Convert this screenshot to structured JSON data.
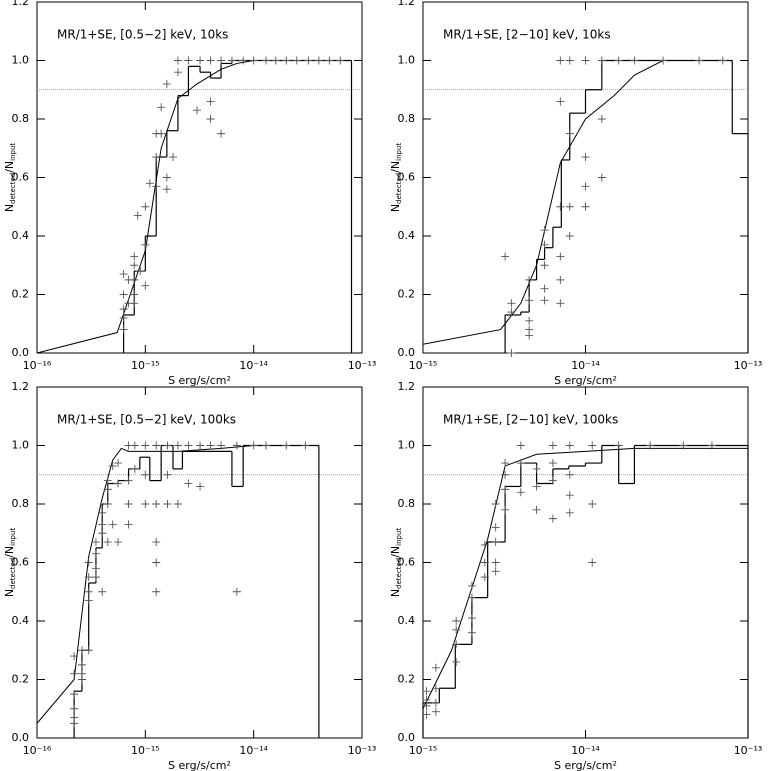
{
  "chart_data": [
    {
      "type": "line",
      "title": "MR/1+SE, [0.5−2] keV, 10ks",
      "xlabel": "S erg/s/cm²",
      "ylabel": [
        "N",
        "detected",
        "/N",
        "input"
      ],
      "xlog": true,
      "xlim": [
        1e-16,
        1e-13
      ],
      "xticks": [
        {
          "value": 1e-16,
          "label": "10⁻¹⁶"
        },
        {
          "value": 1e-15,
          "label": "10⁻¹⁵"
        },
        {
          "value": 1e-14,
          "label": "10⁻¹⁴"
        },
        {
          "value": 1e-13,
          "label": "10⁻¹³"
        }
      ],
      "ylim": [
        0,
        1.2
      ],
      "yticks": [
        {
          "value": 0,
          "label": "0.0"
        },
        0.2,
        0.4,
        0.6,
        0.8,
        {
          "value": 1,
          "label": "1.0"
        },
        1.2
      ],
      "reference_line": 0.9,
      "color": "#000000",
      "histogram": {
        "bins": [
          6.3e-16,
          7.9e-16,
          1e-15,
          1.26e-15,
          1.58e-15,
          2e-15,
          2.5e-15,
          3.2e-15,
          4e-15,
          5e-15,
          6.3e-15,
          1e-14,
          8e-14
        ],
        "values": [
          0.13,
          0.28,
          0.4,
          0.67,
          0.76,
          0.88,
          0.98,
          0.96,
          0.94,
          0.99,
          1.0,
          1.0
        ]
      },
      "curve": {
        "x": [
          1e-16,
          5.5e-16,
          1e-15,
          1.4e-15,
          2e-15,
          3e-15,
          5e-15,
          7e-15,
          1e-14,
          8e-14
        ],
        "values": [
          0,
          0.07,
          0.35,
          0.7,
          0.87,
          0.92,
          0.97,
          0.99,
          1.0,
          1.0
        ]
      },
      "points": {
        "x": [
          6.3e-16,
          6.3e-16,
          6.3e-16,
          6.3e-16,
          6.3e-16,
          7e-16,
          7e-16,
          7.9e-16,
          7.9e-16,
          7.9e-16,
          7.9e-16,
          7.9e-16,
          8.5e-16,
          9e-16,
          1e-15,
          1e-15,
          1e-15,
          1.1e-15,
          1.26e-15,
          1.26e-15,
          1.26e-15,
          1.4e-15,
          1.4e-15,
          1.58e-15,
          1.58e-15,
          1.58e-15,
          1.8e-15,
          2e-15,
          2e-15,
          2.5e-15,
          3e-15,
          3.2e-15,
          4e-15,
          4e-15,
          4e-15,
          5e-15,
          5e-15,
          6.3e-15,
          8e-15,
          1e-14,
          1.3e-14,
          1.6e-14,
          2e-14,
          2.5e-14,
          3.2e-14,
          4e-14,
          5e-14,
          6.3e-14
        ],
        "values": [
          0.27,
          0.2,
          0.15,
          0.12,
          0.08,
          0.25,
          0.17,
          0.33,
          0.3,
          0.25,
          0.2,
          0.17,
          0.47,
          0.28,
          0.5,
          0.37,
          0.23,
          0.58,
          0.75,
          0.67,
          0.57,
          0.84,
          0.75,
          0.92,
          0.6,
          0.56,
          0.67,
          0.96,
          1.0,
          1.0,
          0.83,
          1.0,
          0.86,
          0.8,
          1.0,
          0.75,
          1.0,
          1.0,
          1.0,
          1.0,
          1.0,
          1.0,
          1.0,
          1.0,
          1.0,
          1.0,
          1.0,
          1.0
        ]
      }
    },
    {
      "type": "line",
      "title": "MR/1+SE, [2−10] keV, 10ks",
      "xlabel": "S erg/s/cm²",
      "ylabel": [
        "N",
        "detected",
        "/N",
        "input"
      ],
      "xlog": true,
      "xlim": [
        1e-15,
        1e-13
      ],
      "xticks": [
        {
          "value": 1e-15,
          "label": "10⁻¹⁵"
        },
        {
          "value": 1e-14,
          "label": "10⁻¹⁴"
        },
        {
          "value": 1e-13,
          "label": "10⁻¹³"
        }
      ],
      "ylim": [
        0,
        1.2
      ],
      "yticks": [
        {
          "value": 0,
          "label": "0.0"
        },
        0.2,
        0.4,
        0.6,
        0.8,
        {
          "value": 1,
          "label": "1.0"
        },
        1.2
      ],
      "reference_line": 0.9,
      "color": "#000000",
      "histogram": {
        "bins": [
          3.2e-15,
          4e-15,
          4.5e-15,
          5e-15,
          5.6e-15,
          6.3e-15,
          7.1e-15,
          8e-15,
          1e-14,
          1.26e-14,
          1.6e-14,
          8e-14,
          1e-13
        ],
        "values": [
          0.13,
          0.14,
          0.25,
          0.32,
          0.36,
          0.43,
          0.66,
          0.82,
          0.9,
          1.0,
          1.0,
          0.75
        ]
      },
      "curve": {
        "x": [
          1e-15,
          3e-15,
          4e-15,
          5e-15,
          7e-15,
          1e-14,
          1.5e-14,
          2e-14,
          3e-14,
          8e-14
        ],
        "values": [
          0.03,
          0.08,
          0.17,
          0.3,
          0.65,
          0.8,
          0.88,
          0.95,
          1.0,
          1.0
        ]
      },
      "points": {
        "x": [
          3.2e-15,
          3.5e-15,
          3.5e-15,
          3.5e-15,
          4.5e-15,
          4.5e-15,
          4.5e-15,
          4.5e-15,
          4.5e-15,
          5.6e-15,
          5.6e-15,
          5.6e-15,
          5.6e-15,
          5.6e-15,
          7e-15,
          7e-15,
          7e-15,
          7e-15,
          7e-15,
          7e-15,
          8e-15,
          8e-15,
          8e-15,
          8e-15,
          1e-14,
          1e-14,
          1e-14,
          1e-14,
          1.26e-14,
          1.26e-14,
          1.26e-14,
          1.6e-14,
          2e-14,
          3e-14,
          5e-14,
          7e-14
        ],
        "values": [
          0.33,
          0.17,
          0.14,
          0,
          0.25,
          0.18,
          0.11,
          0.08,
          0.06,
          0.42,
          0.37,
          0.3,
          0.22,
          0.18,
          0.86,
          0.5,
          0.33,
          0.25,
          0.17,
          1.0,
          0.75,
          0.5,
          0.4,
          1.0,
          0.67,
          0.57,
          0.5,
          1.0,
          0.8,
          0.6,
          1.0,
          1.0,
          1.0,
          1.0,
          1.0,
          1.0
        ]
      }
    },
    {
      "type": "line",
      "title": "MR/1+SE, [0.5−2] keV, 100ks",
      "xlabel": "S erg/s/cm²",
      "ylabel": [
        "N",
        "detected",
        "/N",
        "input"
      ],
      "xlog": true,
      "xlim": [
        1e-16,
        1e-13
      ],
      "xticks": [
        {
          "value": 1e-16,
          "label": "10⁻¹⁶"
        },
        {
          "value": 1e-15,
          "label": "10⁻¹⁵"
        },
        {
          "value": 1e-14,
          "label": "10⁻¹⁴"
        },
        {
          "value": 1e-13,
          "label": "10⁻¹³"
        }
      ],
      "ylim": [
        0,
        1.2
      ],
      "yticks": [
        {
          "value": 0,
          "label": "0.0"
        },
        0.2,
        0.4,
        0.6,
        0.8,
        {
          "value": 1,
          "label": "1.0"
        },
        1.2
      ],
      "reference_line": 0.9,
      "color": "#000000",
      "histogram": {
        "bins": [
          2.2e-16,
          2.6e-16,
          3e-16,
          3.5e-16,
          4e-16,
          4.5e-16,
          5.6e-16,
          7e-16,
          8.9e-16,
          1.1e-15,
          1.4e-15,
          1.8e-15,
          2.2e-15,
          6.3e-15,
          8e-15,
          4e-14
        ],
        "values": [
          0.16,
          0.3,
          0.53,
          0.65,
          0.8,
          0.87,
          0.88,
          0.92,
          0.96,
          0.88,
          1.0,
          0.92,
          0.98,
          0.86,
          1.0
        ]
      },
      "curve": {
        "x": [
          1e-16,
          2.2e-16,
          3e-16,
          4e-16,
          5e-16,
          6e-16,
          7e-16,
          1e-15,
          2e-15,
          5e-15,
          1e-14,
          4e-14
        ],
        "values": [
          0.05,
          0.2,
          0.62,
          0.82,
          0.95,
          0.99,
          0.98,
          0.98,
          0.98,
          0.99,
          1.0,
          1.0
        ]
      },
      "points": {
        "x": [
          2.2e-16,
          2.2e-16,
          2.2e-16,
          2.2e-16,
          2.2e-16,
          2.2e-16,
          2.6e-16,
          2.6e-16,
          2.6e-16,
          2.6e-16,
          3e-16,
          3e-16,
          3e-16,
          3e-16,
          3e-16,
          3.5e-16,
          3.5e-16,
          3.5e-16,
          3.5e-16,
          4e-16,
          4e-16,
          4e-16,
          4e-16,
          4.5e-16,
          4.5e-16,
          4.5e-16,
          4.5e-16,
          5e-16,
          5e-16,
          5.6e-16,
          5.6e-16,
          5.6e-16,
          7e-16,
          7e-16,
          7e-16,
          7e-16,
          8e-16,
          8e-16,
          1e-15,
          1e-15,
          1e-15,
          1.26e-15,
          1.26e-15,
          1.26e-15,
          1.26e-15,
          1.26e-15,
          1.6e-15,
          1.6e-15,
          1.6e-15,
          2e-15,
          2e-15,
          2.5e-15,
          2.5e-15,
          3.2e-15,
          3.2e-15,
          4e-15,
          5e-15,
          7e-15,
          7e-15,
          1e-14,
          1.3e-14,
          2e-14,
          3e-14
        ],
        "values": [
          0.28,
          0.22,
          0.15,
          0.1,
          0.07,
          0.05,
          0.3,
          0.25,
          0.22,
          0.2,
          0.6,
          0.55,
          0.5,
          0.47,
          0.3,
          0.67,
          0.63,
          0.58,
          0.55,
          0.77,
          0.73,
          0.7,
          0.5,
          0.88,
          0.85,
          0.8,
          0.67,
          0.93,
          0.73,
          0.94,
          0.87,
          0.67,
          1.0,
          0.88,
          0.8,
          0.73,
          1.0,
          0.92,
          1.0,
          0.9,
          0.8,
          1.0,
          0.67,
          0.6,
          0.5,
          0.8,
          1.0,
          0.8,
          0.9,
          1.0,
          0.8,
          1.0,
          0.87,
          0.86,
          1.0,
          1.0,
          1.0,
          0.5,
          1.0,
          1.0,
          1.0,
          1.0,
          1.0
        ]
      }
    },
    {
      "type": "line",
      "title": "MR/1+SE, [2−10] keV, 100ks",
      "xlabel": "S erg/s/cm²",
      "ylabel": [
        "N",
        "detected",
        "/N",
        "input"
      ],
      "xlog": true,
      "xlim": [
        1e-15,
        1e-13
      ],
      "xticks": [
        {
          "value": 1e-15,
          "label": "10⁻¹⁵"
        },
        {
          "value": 1e-14,
          "label": "10⁻¹⁴"
        },
        {
          "value": 1e-13,
          "label": "10⁻¹³"
        }
      ],
      "ylim": [
        0,
        1.2
      ],
      "yticks": [
        {
          "value": 0,
          "label": "0.0"
        },
        0.2,
        0.4,
        0.6,
        0.8,
        {
          "value": 1,
          "label": "1.0"
        },
        1.2
      ],
      "reference_line": 0.9,
      "color": "#000000",
      "histogram": {
        "bins": [
          1e-15,
          1.26e-15,
          1.58e-15,
          2e-15,
          2.5e-15,
          3.2e-15,
          4e-15,
          5e-15,
          6.3e-15,
          7.9e-15,
          1e-14,
          1.26e-14,
          1.6e-14,
          2e-14,
          1e-13
        ],
        "values": [
          0.12,
          0.17,
          0.32,
          0.48,
          0.67,
          0.86,
          0.94,
          0.87,
          0.92,
          0.93,
          0.94,
          1.0,
          0.87,
          1.0
        ]
      },
      "curve": {
        "x": [
          1e-15,
          1.5e-15,
          2.5e-15,
          3.2e-15,
          5e-15,
          1e-14,
          2e-14,
          1e-13
        ],
        "values": [
          0.1,
          0.3,
          0.68,
          0.93,
          0.97,
          0.98,
          0.99,
          0.99
        ]
      },
      "points": {
        "x": [
          1.05e-15,
          1.05e-15,
          1.05e-15,
          1.05e-15,
          1.2e-15,
          1.2e-15,
          1.2e-15,
          1.2e-15,
          1.6e-15,
          1.6e-15,
          1.6e-15,
          1.6e-15,
          2e-15,
          2e-15,
          2e-15,
          2e-15,
          2.4e-15,
          2.4e-15,
          2.4e-15,
          2.8e-15,
          2.8e-15,
          2.8e-15,
          2.8e-15,
          2.8e-15,
          3.2e-15,
          3.2e-15,
          3.2e-15,
          3.2e-15,
          4e-15,
          4e-15,
          4e-15,
          5e-15,
          5e-15,
          5e-15,
          6.3e-15,
          6.3e-15,
          6.3e-15,
          6.3e-15,
          8e-15,
          8e-15,
          8e-15,
          8e-15,
          1.1e-14,
          1.1e-14,
          1.1e-14,
          1.6e-14,
          2.5e-14,
          4e-14,
          6e-14
        ],
        "values": [
          0.16,
          0.13,
          0.11,
          0.08,
          0.24,
          0.17,
          0.12,
          0.09,
          0.4,
          0.37,
          0.32,
          0.26,
          0.52,
          0.48,
          0.41,
          0.36,
          0.66,
          0.6,
          0.55,
          0.8,
          0.72,
          0.67,
          0.6,
          0.57,
          0.94,
          0.9,
          0.85,
          0.78,
          1.0,
          0.94,
          0.84,
          0.92,
          0.86,
          0.78,
          0.94,
          0.88,
          0.75,
          1.0,
          0.9,
          0.83,
          0.77,
          1.0,
          0.8,
          0.6,
          1.0,
          1.0,
          1.0,
          1.0,
          1.0
        ]
      }
    }
  ]
}
